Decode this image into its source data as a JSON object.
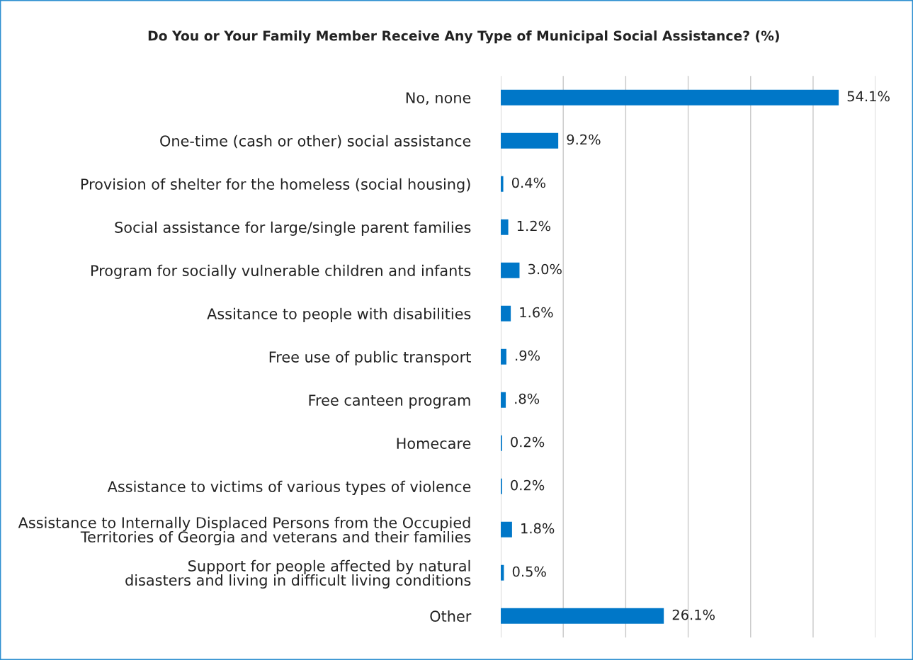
{
  "chart_data": {
    "type": "bar",
    "orientation": "horizontal",
    "title": "Do You or Your Family Member Receive Any Type of Municipal Social Assistance? (%)",
    "categories": [
      "No, none",
      "One-time (cash or other) social assistance",
      "Provision of shelter for the homeless (social housing)",
      "Social assistance for large/single parent families",
      "Program for socially vulnerable children and infants",
      "Assitance to people with disabilities",
      "Free use of public transport",
      "Free canteen program",
      "Homecare",
      "Assistance to victims of various types of violence",
      "Assistance to Internally Displaced Persons from the Occupied\nTerritories of Georgia and veterans and their families",
      "Support for people affected by natural\ndisasters and living in difficult living conditions",
      "Other"
    ],
    "values": [
      54.1,
      9.2,
      0.4,
      1.2,
      3.0,
      1.6,
      0.9,
      0.8,
      0.2,
      0.2,
      1.8,
      0.5,
      26.1
    ],
    "value_labels": [
      "54.1%",
      "9.2%",
      "0.4%",
      "1.2%",
      "3.0%",
      "1.6%",
      ".9%",
      ".8%",
      "0.2%",
      "0.2%",
      "1.8%",
      "0.5%",
      "26.1%"
    ],
    "color": "#0077c8",
    "xlim": [
      0,
      60
    ],
    "xticks": [
      {
        "value": 0,
        "label": null
      },
      {
        "value": 10,
        "label": null
      },
      {
        "value": 20,
        "label": null
      },
      {
        "value": 30,
        "label": null
      },
      {
        "value": 40,
        "label": null
      },
      {
        "value": 50,
        "label": null
      },
      {
        "value": 60,
        "label": null
      }
    ],
    "grid": "x",
    "tick_labels": "y",
    "legend": false
  }
}
